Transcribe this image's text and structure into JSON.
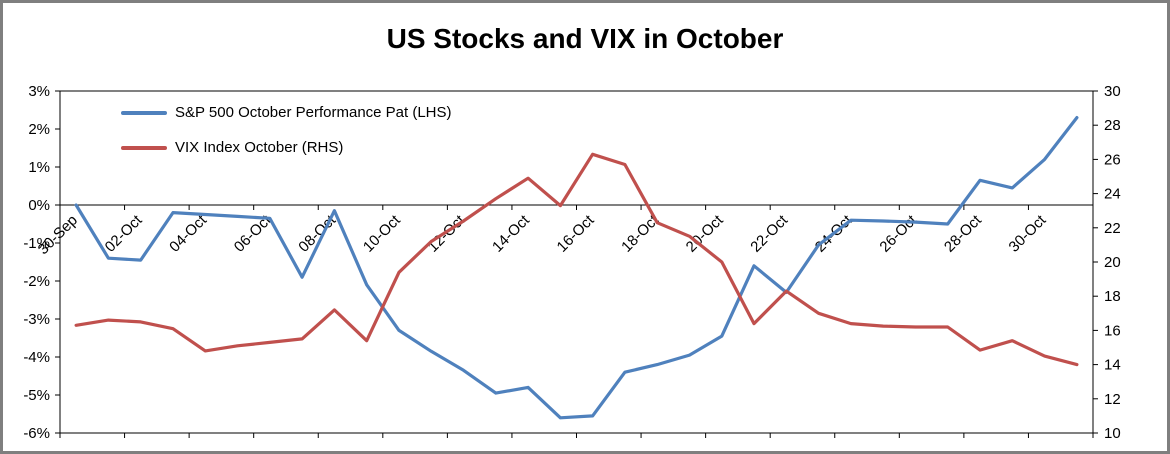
{
  "chart_data": {
    "type": "line",
    "title": "US Stocks and VIX in October",
    "x_tick_labels": [
      "30-Sep",
      "02-Oct",
      "04-Oct",
      "06-Oct",
      "08-Oct",
      "10-Oct",
      "12-Oct",
      "14-Oct",
      "16-Oct",
      "18-Oct",
      "20-Oct",
      "22-Oct",
      "24-Oct",
      "26-Oct",
      "28-Oct",
      "30-Oct"
    ],
    "x_points_per_tick": 2,
    "n_points": 32,
    "series": [
      {
        "name": "S&P 500 October Performance Pat (LHS)",
        "axis": "left",
        "color": "#4F81BD",
        "values": [
          0.0,
          -1.4,
          -1.45,
          -0.2,
          -0.25,
          -0.3,
          -0.35,
          -1.9,
          -0.15,
          -2.1,
          -3.3,
          -3.85,
          -4.35,
          -4.95,
          -4.8,
          -5.6,
          -5.55,
          -4.4,
          -4.2,
          -3.95,
          -3.45,
          -1.6,
          -2.3,
          -1.05,
          -0.4,
          -0.42,
          -0.45,
          -0.5,
          0.65,
          0.45,
          1.2,
          2.3
        ]
      },
      {
        "name": "VIX Index October (RHS)",
        "axis": "right",
        "color": "#C0504D",
        "values": [
          16.3,
          16.6,
          16.5,
          16.1,
          14.8,
          15.1,
          15.3,
          15.5,
          17.2,
          15.4,
          19.4,
          21.2,
          22.4,
          23.7,
          24.9,
          23.3,
          26.3,
          25.7,
          22.3,
          21.5,
          20.0,
          16.4,
          18.3,
          17.0,
          16.4,
          16.25,
          16.2,
          16.2,
          14.85,
          15.4,
          14.5,
          14.0
        ]
      }
    ],
    "left_axis": {
      "min": -6,
      "max": 3,
      "step": 1,
      "format": "percent",
      "tick_labels": [
        "3%",
        "2%",
        "1%",
        "0%",
        "-1%",
        "-2%",
        "-3%",
        "-4%",
        "-5%",
        "-6%"
      ]
    },
    "right_axis": {
      "min": 10,
      "max": 30,
      "step": 2,
      "tick_labels": [
        "30",
        "28",
        "26",
        "24",
        "22",
        "20",
        "18",
        "16",
        "14",
        "12",
        "10"
      ]
    },
    "legend_position": "top-left-inside",
    "grid": false,
    "axis_color": "#000000",
    "border_color": "#7f7f7f"
  }
}
